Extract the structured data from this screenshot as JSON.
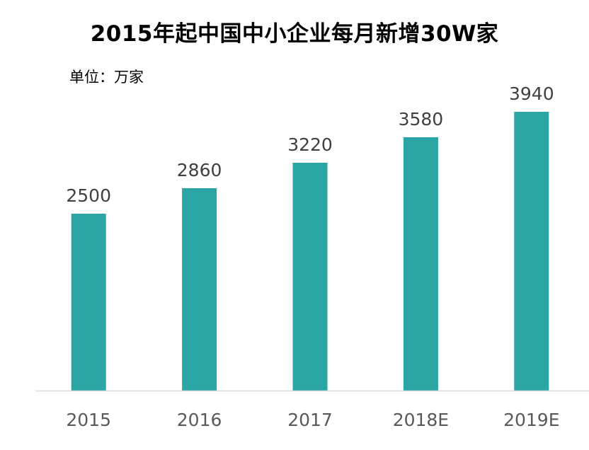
{
  "chart_data": {
    "type": "bar",
    "title": "2015年起中国中小企业每月新增30W家",
    "unit_label": "单位：万家",
    "categories": [
      "2015",
      "2016",
      "2017",
      "2018E",
      "2019E"
    ],
    "values": [
      2500,
      2860,
      3220,
      3580,
      3940
    ],
    "data_labels": [
      "2500",
      "2860",
      "3220",
      "3580",
      "3940"
    ],
    "ylim": [
      0,
      4000
    ],
    "grid": false,
    "legend": "none",
    "bar_color": "#2CA6A4",
    "axis_color": "#D9D9D9"
  }
}
